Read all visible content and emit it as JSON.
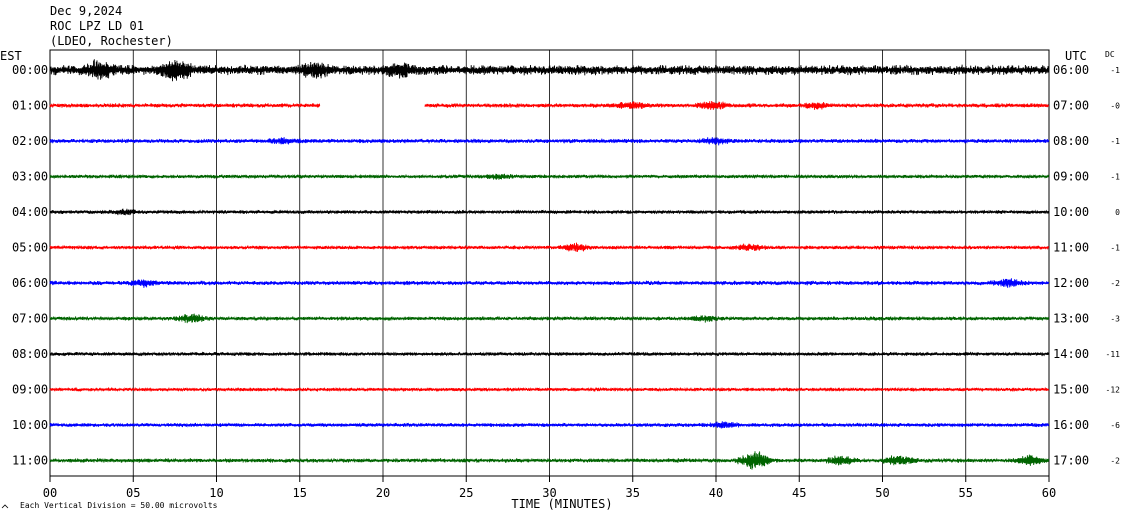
{
  "header": {
    "date": "Dec 9,2024",
    "station": "ROC LPZ LD 01",
    "network": "(LDEO, Rochester)"
  },
  "chart_data": {
    "type": "line",
    "title": "ROC LPZ LD 01",
    "xlabel": "TIME (MINUTES)",
    "xlim": [
      0,
      60
    ],
    "x_ticks": [
      "00",
      "05",
      "10",
      "15",
      "20",
      "25",
      "30",
      "35",
      "40",
      "45",
      "50",
      "55",
      "60"
    ],
    "left_axis_label": "EST",
    "right_axis_label": "UTC",
    "dc_label": "DC",
    "grid": true,
    "footnote": "Each Vertical Division =   50.00 microvolts",
    "colors": [
      "#000000",
      "#ff0000",
      "#0000ff",
      "#006400"
    ],
    "rows": [
      {
        "est": "00:00",
        "utc": "06:00",
        "dc": "-1",
        "color": "#000000",
        "amp": 3.0,
        "bursts": [
          [
            3,
            1.8
          ],
          [
            7.5,
            2.3
          ],
          [
            16,
            1.4
          ],
          [
            21,
            1.3
          ]
        ]
      },
      {
        "est": "01:00",
        "utc": "07:00",
        "dc": "-0",
        "color": "#ff0000",
        "amp": 1.3,
        "gaps": [
          [
            16.2,
            22.5
          ]
        ],
        "bursts": [
          [
            35,
            1.7
          ],
          [
            39.8,
            2.0
          ],
          [
            46,
            1.4
          ]
        ]
      },
      {
        "est": "02:00",
        "utc": "08:00",
        "dc": "-1",
        "color": "#0000ff",
        "amp": 1.3,
        "bursts": [
          [
            14,
            1.3
          ],
          [
            40,
            1.3
          ]
        ]
      },
      {
        "est": "03:00",
        "utc": "09:00",
        "dc": "-1",
        "color": "#006400",
        "amp": 1.1,
        "bursts": [
          [
            27,
            1.4
          ]
        ]
      },
      {
        "est": "04:00",
        "utc": "10:00",
        "dc": "0",
        "color": "#000000",
        "amp": 1.1,
        "bursts": [
          [
            4.5,
            1.4
          ]
        ]
      },
      {
        "est": "05:00",
        "utc": "11:00",
        "dc": "-1",
        "color": "#ff0000",
        "amp": 1.1,
        "bursts": [
          [
            31.5,
            2.2
          ],
          [
            42,
            1.6
          ]
        ]
      },
      {
        "est": "06:00",
        "utc": "12:00",
        "dc": "-2",
        "color": "#0000ff",
        "amp": 1.3,
        "bursts": [
          [
            5.6,
            1.6
          ],
          [
            57.5,
            1.8
          ]
        ]
      },
      {
        "est": "07:00",
        "utc": "13:00",
        "dc": "-3",
        "color": "#006400",
        "amp": 1.2,
        "bursts": [
          [
            8.5,
            2.4
          ],
          [
            39.3,
            1.6
          ]
        ]
      },
      {
        "est": "08:00",
        "utc": "14:00",
        "dc": "-11",
        "color": "#000000",
        "amp": 1.1,
        "bursts": []
      },
      {
        "est": "09:00",
        "utc": "15:00",
        "dc": "-12",
        "color": "#ff0000",
        "amp": 1.1,
        "bursts": []
      },
      {
        "est": "10:00",
        "utc": "16:00",
        "dc": "-6",
        "color": "#0000ff",
        "amp": 1.2,
        "bursts": [
          [
            40.5,
            1.5
          ]
        ]
      },
      {
        "est": "11:00",
        "utc": "17:00",
        "dc": "-2",
        "color": "#006400",
        "amp": 1.3,
        "bursts": [
          [
            42.3,
            4.8
          ],
          [
            47.5,
            2.2
          ],
          [
            51,
            2.4
          ],
          [
            58.8,
            2.6
          ]
        ]
      }
    ]
  }
}
